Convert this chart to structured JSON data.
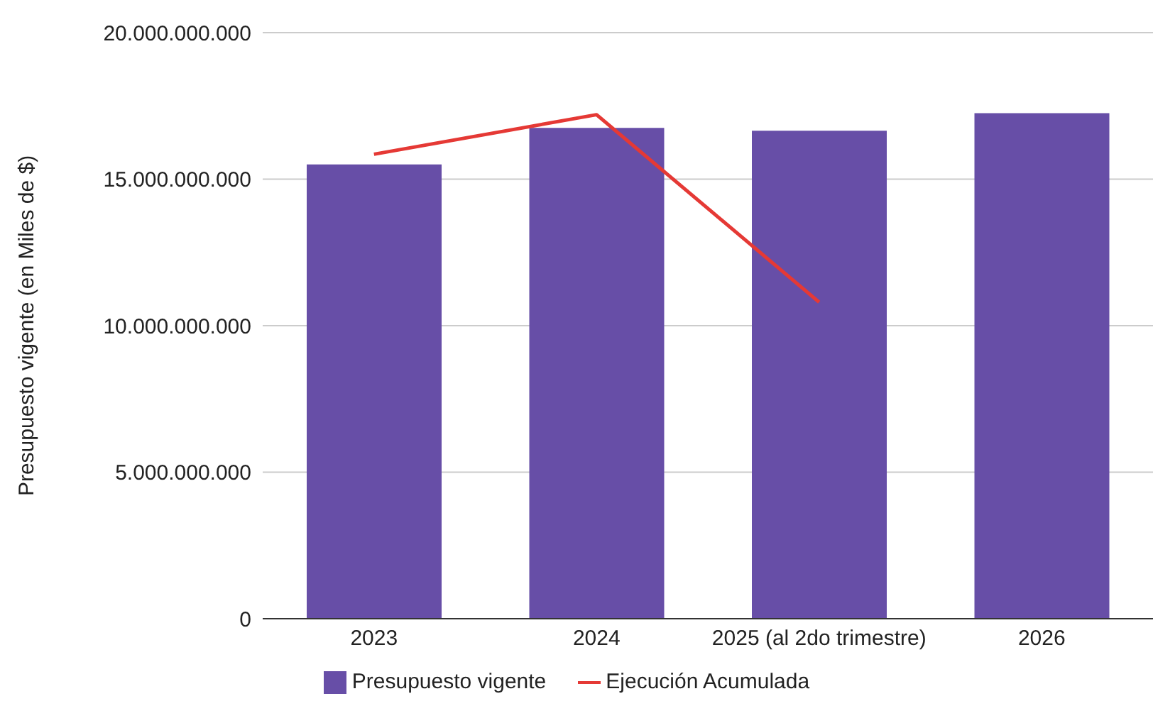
{
  "chart_data": {
    "type": "bar",
    "ylabel": "Presupuesto vigente (en Miles de $)",
    "categories": [
      "2023",
      "2024",
      "2025 (al 2do trimestre)",
      "2026"
    ],
    "series": [
      {
        "name": "Presupuesto vigente",
        "color": "#674ea7",
        "values": [
          15500000000,
          16750000000,
          16650000000,
          17250000000
        ]
      },
      {
        "name": "Ejecución Acumulada",
        "type": "line",
        "color": "#e53935",
        "values": [
          15850000000,
          17200000000,
          10800000000,
          null
        ]
      }
    ],
    "ylim": [
      0,
      20000000000
    ],
    "yticks": [
      0,
      {
        "value": 5000000000,
        "label": "5.000.000.000"
      },
      {
        "value": 10000000000,
        "label": "10.000.000.000"
      },
      {
        "value": 15000000000,
        "label": "15.000.000.000"
      },
      {
        "value": 20000000000,
        "label": "20.000.000.000"
      }
    ],
    "grid": "y",
    "legend": "bottom",
    "marker": "none"
  }
}
